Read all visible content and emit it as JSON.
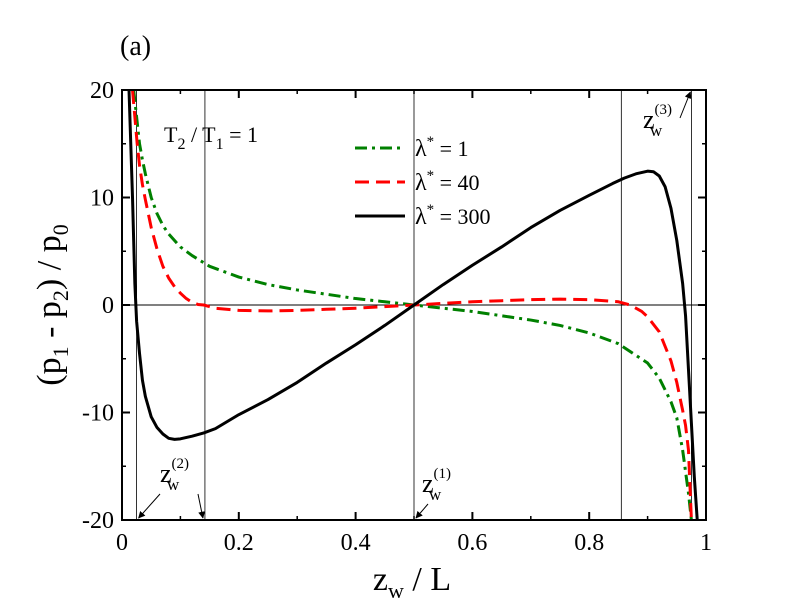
{
  "panel_label": "(a)",
  "chart_data": {
    "type": "line",
    "title": "",
    "xlabel": "z_w / L",
    "ylabel": "(p_1 - p_2) / p_0",
    "xlim": [
      0,
      1
    ],
    "ylim": [
      -20,
      20
    ],
    "xticks": [
      0,
      0.2,
      0.4,
      0.6,
      0.8,
      1
    ],
    "xtick_labels": [
      "0",
      "0.2",
      "0.4",
      "0.6",
      "0.8",
      "1"
    ],
    "yticks": [
      -20,
      -10,
      0,
      10,
      20
    ],
    "ytick_labels": [
      "-20",
      "-10",
      "0",
      "10",
      "20"
    ],
    "legend_position": "top-right",
    "annotation_condition": {
      "lhs": "T",
      "lhs_sub": "2",
      "sep": " / ",
      "rhs": "T",
      "rhs_sub": "1",
      "value": " = 1"
    },
    "series": [
      {
        "name": "λ* = 1",
        "label_main": "λ",
        "label_sup": "*",
        "label_value": " = 1",
        "color": "#008000",
        "dash": "dashdot",
        "x": [
          0.02,
          0.025,
          0.03,
          0.035,
          0.04,
          0.05,
          0.06,
          0.07,
          0.08,
          0.1,
          0.12,
          0.15,
          0.2,
          0.25,
          0.3,
          0.35,
          0.4,
          0.45,
          0.5,
          0.55,
          0.6,
          0.65,
          0.7,
          0.75,
          0.8,
          0.85,
          0.9,
          0.92,
          0.94,
          0.95,
          0.96,
          0.965,
          0.97,
          0.975
        ],
        "y": [
          20,
          17.5,
          15,
          13.5,
          12.2,
          10,
          8.5,
          7.4,
          6.6,
          5.4,
          4.6,
          3.6,
          2.6,
          1.9,
          1.4,
          1.0,
          0.6,
          0.3,
          0,
          -0.3,
          -0.6,
          -1.0,
          -1.4,
          -1.9,
          -2.6,
          -3.6,
          -5.4,
          -6.8,
          -9.0,
          -10.5,
          -13.5,
          -15.5,
          -17.5,
          -20
        ]
      },
      {
        "name": "λ* = 40",
        "label_main": "λ",
        "label_sup": "*",
        "label_value": " = 40",
        "color": "#ff0000",
        "dash": "dashed",
        "x": [
          0.018,
          0.022,
          0.026,
          0.03,
          0.035,
          0.04,
          0.05,
          0.06,
          0.07,
          0.08,
          0.09,
          0.1,
          0.11,
          0.12,
          0.13,
          0.14,
          0.16,
          0.2,
          0.25,
          0.3,
          0.35,
          0.4,
          0.45,
          0.5,
          0.55,
          0.6,
          0.65,
          0.7,
          0.75,
          0.8,
          0.85,
          0.87,
          0.89,
          0.9,
          0.92,
          0.94,
          0.95,
          0.96,
          0.965,
          0.97,
          0.975
        ],
        "y": [
          20,
          17.5,
          15,
          13,
          11.2,
          9.8,
          7.2,
          5.2,
          3.6,
          2.5,
          1.7,
          1.1,
          0.6,
          0.25,
          0.05,
          0,
          -0.3,
          -0.5,
          -0.55,
          -0.5,
          -0.4,
          -0.3,
          -0.15,
          0,
          0.15,
          0.3,
          0.4,
          0.5,
          0.55,
          0.5,
          0.3,
          0,
          -0.6,
          -1.1,
          -2.5,
          -5.2,
          -7.2,
          -9.8,
          -11.2,
          -13.5,
          -20
        ]
      },
      {
        "name": "λ* = 300",
        "label_main": "λ",
        "label_sup": "*",
        "label_value": " = 300",
        "color": "#000000",
        "dash": "solid",
        "x": [
          0.012,
          0.015,
          0.018,
          0.02,
          0.022,
          0.025,
          0.03,
          0.035,
          0.04,
          0.05,
          0.06,
          0.07,
          0.08,
          0.09,
          0.1,
          0.12,
          0.14,
          0.16,
          0.2,
          0.25,
          0.3,
          0.35,
          0.4,
          0.45,
          0.5,
          0.55,
          0.6,
          0.65,
          0.7,
          0.75,
          0.8,
          0.84,
          0.86,
          0.88,
          0.9,
          0.91,
          0.92,
          0.93,
          0.94,
          0.95,
          0.96,
          0.965,
          0.97,
          0.975,
          0.98,
          0.985
        ],
        "y": [
          20,
          15,
          10,
          6,
          2,
          -1.5,
          -4.5,
          -7,
          -8.5,
          -10.4,
          -11.4,
          -12,
          -12.4,
          -12.5,
          -12.45,
          -12.2,
          -11.9,
          -11.5,
          -10.2,
          -8.8,
          -7.2,
          -5.4,
          -3.7,
          -1.9,
          0,
          1.9,
          3.7,
          5.4,
          7.2,
          8.8,
          10.2,
          11.3,
          11.8,
          12.2,
          12.45,
          12.4,
          12,
          11,
          9,
          6,
          2,
          -1,
          -6,
          -11,
          -16,
          -20
        ]
      }
    ],
    "annotations": [
      {
        "id": "zw1",
        "base": "z",
        "sub": "w",
        "sup": "(1)",
        "value": 0.5
      },
      {
        "id": "zw2",
        "base": "z",
        "sub": "w",
        "sup": "(2)",
        "range": [
          0.025,
          0.142
        ]
      },
      {
        "id": "zw3",
        "base": "z",
        "sub": "w",
        "sup": "(3)",
        "range": [
          0.855,
          0.975
        ]
      }
    ],
    "guide_lines": {
      "vertical_x": [
        0.025,
        0.142,
        0.5,
        0.855,
        0.975
      ],
      "zero_line": true
    }
  }
}
